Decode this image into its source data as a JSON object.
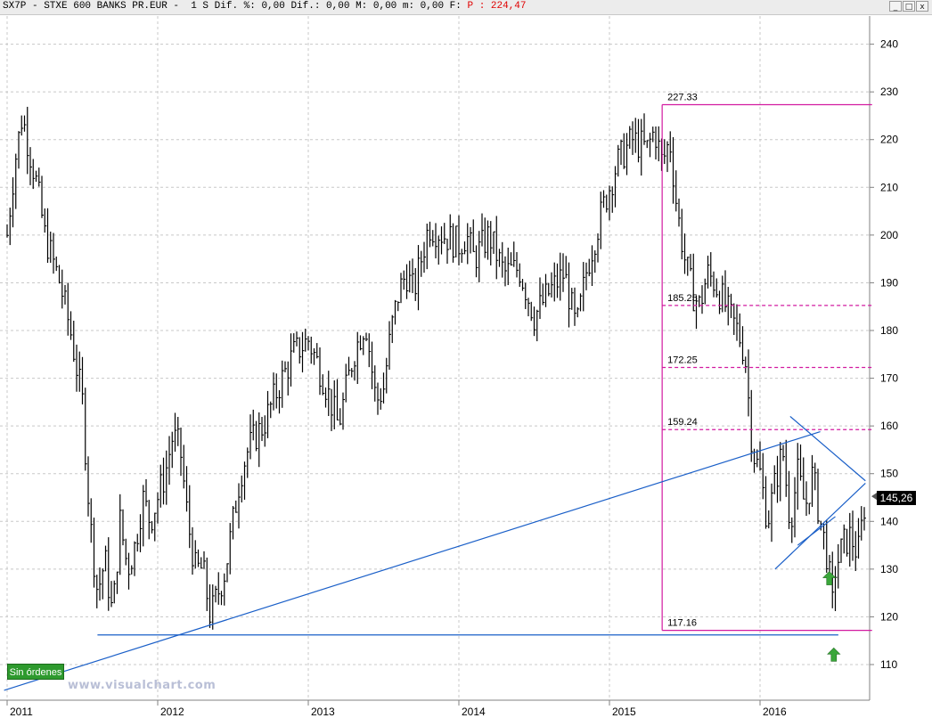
{
  "window": {
    "title_main": "SX7P - STXE 600 BANKS PR.EUR -  1 S Dif. %: 0,00 Dif.: 0,00 M: 0,00 m: 0,00 F: ",
    "title_price": "P : 224,47",
    "buttons": {
      "minimize": "_",
      "maximize": "□",
      "close": "x"
    }
  },
  "watermark": "www.visualchart.com",
  "orders_button": "Sin órdenes",
  "last_price_label": "145,26",
  "colors": {
    "candle": "#000000",
    "trendline": "#1a5fc8",
    "fibonacci": "#d21aa0",
    "signal_arrow": "#3aa63a",
    "grid": "#c8c8c8"
  },
  "icons": [
    "up-arrow-icon",
    "left-arrow-icon"
  ],
  "chart_data": {
    "type": "line",
    "style": "weekly OHLC bars",
    "x_tick_labels": [
      "2011",
      "2012",
      "2013",
      "2014",
      "2015",
      "2016"
    ],
    "y_tick_labels": [
      "110",
      "120",
      "130",
      "140",
      "150",
      "160",
      "170",
      "180",
      "190",
      "200",
      "210",
      "220",
      "230",
      "240"
    ],
    "ylim": [
      103,
      248
    ],
    "xlim": [
      2011.0,
      2016.75
    ],
    "grid": true,
    "series": [
      {
        "x": [
          2011.0,
          2011.05,
          2011.1,
          2011.2,
          2011.25,
          2011.35,
          2011.42,
          2011.5,
          2011.55,
          2011.6,
          2011.65,
          2011.7,
          2011.75,
          2011.8,
          2011.85,
          2011.9,
          2011.95,
          2012.0,
          2012.05,
          2012.1,
          2012.15,
          2012.2,
          2012.25,
          2012.3,
          2012.35,
          2012.4,
          2012.45,
          2012.5,
          2012.55,
          2012.6,
          2012.65,
          2012.7,
          2012.8,
          2012.9,
          2013.0,
          2013.1,
          2013.2,
          2013.3,
          2013.38,
          2013.45,
          2013.5,
          2013.55,
          2013.6,
          2013.65,
          2013.7,
          2013.75,
          2013.8,
          2013.9,
          2014.0,
          2014.05,
          2014.1,
          2014.2,
          2014.3,
          2014.4,
          2014.5,
          2014.6,
          2014.7,
          2014.78,
          2014.85,
          2014.95,
          2015.05,
          2015.15,
          2015.25,
          2015.3,
          2015.35,
          2015.4,
          2015.45,
          2015.5,
          2015.55,
          2015.6,
          2015.65,
          2015.7,
          2015.8,
          2015.85,
          2015.9,
          2015.95,
          2016.0,
          2016.05,
          2016.1,
          2016.15,
          2016.2,
          2016.25,
          2016.3,
          2016.35,
          2016.4,
          2016.45,
          2016.48,
          2016.5,
          2016.55,
          2016.6,
          2016.65,
          2016.7
        ],
        "y": [
          200,
          215,
          225,
          210,
          200,
          190,
          180,
          165,
          140,
          125,
          132,
          120,
          140,
          130,
          135,
          145,
          140,
          145,
          150,
          158,
          155,
          140,
          130,
          130,
          120,
          125,
          130,
          140,
          150,
          155,
          158,
          160,
          168,
          175,
          178,
          170,
          160,
          175,
          182,
          165,
          168,
          180,
          188,
          192,
          188,
          195,
          202,
          200,
          198,
          200,
          195,
          200,
          192,
          193,
          183,
          188,
          192,
          180,
          193,
          205,
          215,
          220,
          218,
          222,
          215,
          220,
          205,
          195,
          188,
          185,
          192,
          190,
          183,
          180,
          175,
          155,
          150,
          140,
          148,
          155,
          140,
          150,
          143,
          150,
          140,
          132,
          122,
          130,
          135,
          137,
          133,
          145
        ]
      }
    ],
    "annotations": {
      "fibonacci_levels": [
        "227.33",
        "185.25",
        "172.25",
        "159.24",
        "117.16"
      ]
    }
  }
}
